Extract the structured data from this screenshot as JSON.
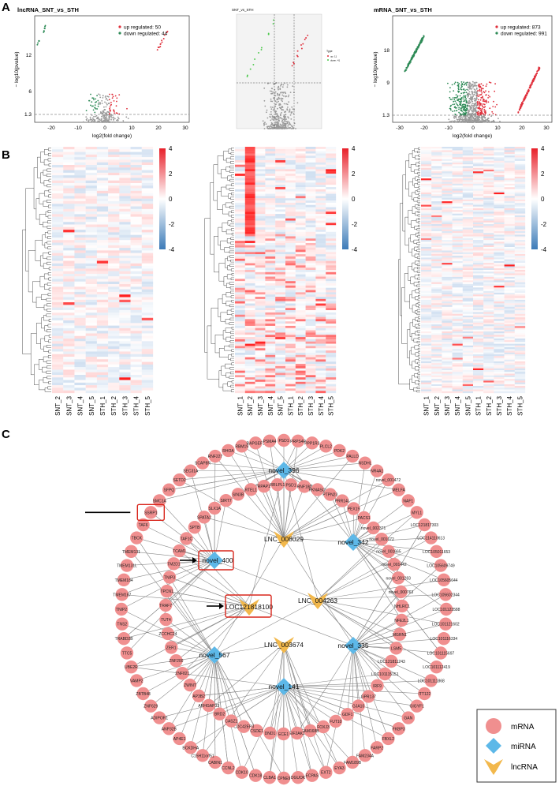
{
  "labels": {
    "a": "A",
    "b": "B",
    "c": "C"
  },
  "volcano": [
    {
      "title": "lncRNA_SNT_vs_STH",
      "legend_up": "up regulated: 50",
      "legend_down": "down regulated: 44",
      "xticks": [
        "-20",
        "-10",
        "0",
        "10",
        "20",
        "30"
      ],
      "yticks": [
        "12",
        "6",
        "1.3"
      ],
      "xlabel": "log2(fold change)",
      "ylabel": "− log10(pvalue)",
      "threshold": 1.3
    },
    {
      "title": "SNT_vs_STH",
      "legend_title": "Type",
      "legend_up": "up: 11",
      "legend_down": "down: 41"
    },
    {
      "title": "mRNA_SNT_vs_STH",
      "legend_up": "up regulated: 873",
      "legend_down": "down regulated: 991",
      "xticks": [
        "-30",
        "-20",
        "-10",
        "0",
        "10",
        "20",
        "30"
      ],
      "yticks": [
        "18",
        "9",
        "1.3"
      ],
      "xlabel": "log2(fold change)",
      "ylabel": "− log10(pvalue)",
      "threshold": 1.3
    }
  ],
  "heatmap": {
    "scale": [
      "4",
      "2",
      "0",
      "-2",
      "-4"
    ],
    "maps": [
      {
        "samples": [
          "SNT_2",
          "SNT_3",
          "SNT_4",
          "SNT_5",
          "STH_1",
          "STH_2",
          "STH_3",
          "STH_4",
          "STH_5"
        ]
      },
      {
        "samples": [
          "SNT_1",
          "SNT_2",
          "SNT_3",
          "SNT_4",
          "SNT_5",
          "STH_1",
          "STH_2",
          "STH_3",
          "STH_4",
          "STH_5"
        ]
      },
      {
        "samples": [
          "SNT_1",
          "SNT_2",
          "SNT_3",
          "SNT_4",
          "SNT_5",
          "STH_1",
          "STH_2",
          "STH_3",
          "STH_4",
          "STH_5"
        ]
      }
    ]
  },
  "network": {
    "mrna_ring": [
      "PSD1",
      "PRPS4P",
      "PPP1R3",
      "PLCL2",
      "PDK2",
      "PALLD",
      "NSDHL",
      "NR4A1",
      "novel_001472",
      "MELFA",
      "NAF1",
      "MYL1",
      "LOC121817303",
      "LOC114110613",
      "LOC105011653",
      "LOC105609749",
      "LOC105605644",
      "LOC105602344",
      "LOC101123588",
      "LOC101121602",
      "LOC101116334",
      "LOC101115697",
      "LOC101112419",
      "LOC101111868",
      "ITT122",
      "GIGYF1",
      "GAN",
      "FKBP3",
      "FBXL2",
      "FARP2",
      "FAM234A",
      "FAM189B",
      "EYA3",
      "EXT2",
      "ECPAS",
      "DGUOK",
      "CPNE9",
      "CLBA1",
      "CDK18",
      "CDK10",
      "CCNL2",
      "CABIN1",
      "C15H11orf51",
      "BCKDHA",
      "AP4E1",
      "ANP32B",
      "ADIPOR1",
      "ZNF629",
      "ZBTB48",
      "VAMP2",
      "UBE2R",
      "TTC5",
      "TRABD2B",
      "TNS2",
      "TNIP2",
      "TMEM187",
      "TMEM184",
      "TMEM131L",
      "TMEM131",
      "TBCK",
      "TAF6",
      "SSRP1",
      "SMC1A",
      "SFPQ",
      "SETD2",
      "SEC31A",
      "SCAP8R",
      "RNF227",
      "RHOA",
      "RBM19",
      "RAPGEF1",
      "PSMA4"
    ],
    "mrna_inner": [
      "PSD1",
      "RNF180",
      "PKNASCI",
      "PTPN23",
      "PRR14L",
      "PEX19",
      "PACS1",
      "novel_002371",
      "novel_001672",
      "novel_001665",
      "novel_001442",
      "novel_001283",
      "novel_000763",
      "NHLRC1",
      "NFE2L1",
      "MGRN1",
      "LSM5",
      "LOC121811243",
      "LOC101115151",
      "IRF9",
      "GPR137",
      "GJA10",
      "GDF1",
      "FUT10",
      "FOXJ3",
      "FAM168B",
      "EIF2AK1",
      "ECE1",
      "DND1",
      "CSDE1",
      "CDC42EP3",
      "CASZ1",
      "BRD2",
      "ARHGAP33",
      "AP3B2",
      "ZWINT",
      "ZNF821",
      "ZNF200",
      "ZER1",
      "ZCCHC24",
      "TUT4",
      "TRAF7",
      "TPCN1",
      "TNIP3",
      "TM2D1",
      "TCAM1",
      "TAF1C",
      "SPTB",
      "SPATA2",
      "SLX1A",
      "SIRT7",
      "SIN3B",
      "RTEL1",
      "RPAP1",
      "RRLPL1"
    ],
    "mirna": [
      "novel_396",
      "novel_400",
      "novel_342",
      "novel_567",
      "novel_335",
      "novel_141"
    ],
    "lncrna": [
      "LNC_008029",
      "LOC121818100",
      "LNC_004263",
      "LNC_003674"
    ],
    "legend": {
      "mrna": "mRNA",
      "mirna": "miRNA",
      "lncrna": "lncRNA"
    },
    "colors": {
      "mrna": "#f08f8f",
      "mirna": "#5db8e8",
      "lncrna": "#f2b84c",
      "highlight": "#d9261c"
    }
  }
}
